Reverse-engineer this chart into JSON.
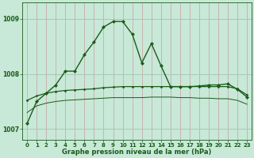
{
  "bg_color": "#c8e8d8",
  "grid_color_v": "#c8a0a0",
  "grid_color_h": "#a8c8b8",
  "line_color": "#1a5c1a",
  "title": "Graphe pression niveau de la mer (hPa)",
  "ylim": [
    1006.8,
    1009.3
  ],
  "yticks": [
    1007,
    1008,
    1009
  ],
  "xlim": [
    -0.5,
    23.5
  ],
  "xticks": [
    0,
    1,
    2,
    3,
    4,
    5,
    6,
    7,
    8,
    9,
    10,
    11,
    12,
    13,
    14,
    15,
    16,
    17,
    18,
    19,
    20,
    21,
    22,
    23
  ],
  "series1_x": [
    0,
    1,
    2,
    3,
    4,
    5,
    6,
    7,
    8,
    9,
    10,
    11,
    12,
    13,
    14,
    15,
    16,
    17,
    18,
    19,
    20,
    21,
    22,
    23
  ],
  "series1_y": [
    1007.1,
    1007.5,
    1007.65,
    1007.8,
    1008.05,
    1008.05,
    1008.35,
    1008.58,
    1008.85,
    1008.95,
    1008.95,
    1008.72,
    1008.2,
    1008.55,
    1008.15,
    1007.77,
    1007.77,
    1007.77,
    1007.78,
    1007.8,
    1007.8,
    1007.82,
    1007.72,
    1007.58
  ],
  "series2_x": [
    0,
    1,
    2,
    3,
    4,
    5,
    6,
    7,
    8,
    9,
    10,
    11,
    12,
    13,
    14,
    15,
    16,
    17,
    18,
    19,
    20,
    21,
    22,
    23
  ],
  "series2_y": [
    1007.52,
    1007.6,
    1007.65,
    1007.68,
    1007.7,
    1007.71,
    1007.72,
    1007.73,
    1007.75,
    1007.76,
    1007.77,
    1007.77,
    1007.77,
    1007.77,
    1007.77,
    1007.77,
    1007.77,
    1007.77,
    1007.77,
    1007.77,
    1007.77,
    1007.77,
    1007.73,
    1007.62
  ],
  "series3_x": [
    0,
    1,
    2,
    3,
    4,
    5,
    6,
    7,
    8,
    9,
    10,
    11,
    12,
    13,
    14,
    15,
    16,
    17,
    18,
    19,
    20,
    21,
    22,
    23
  ],
  "series3_y": [
    1007.3,
    1007.42,
    1007.47,
    1007.5,
    1007.52,
    1007.53,
    1007.54,
    1007.55,
    1007.56,
    1007.57,
    1007.57,
    1007.57,
    1007.57,
    1007.58,
    1007.58,
    1007.58,
    1007.57,
    1007.57,
    1007.56,
    1007.56,
    1007.55,
    1007.55,
    1007.52,
    1007.45
  ]
}
